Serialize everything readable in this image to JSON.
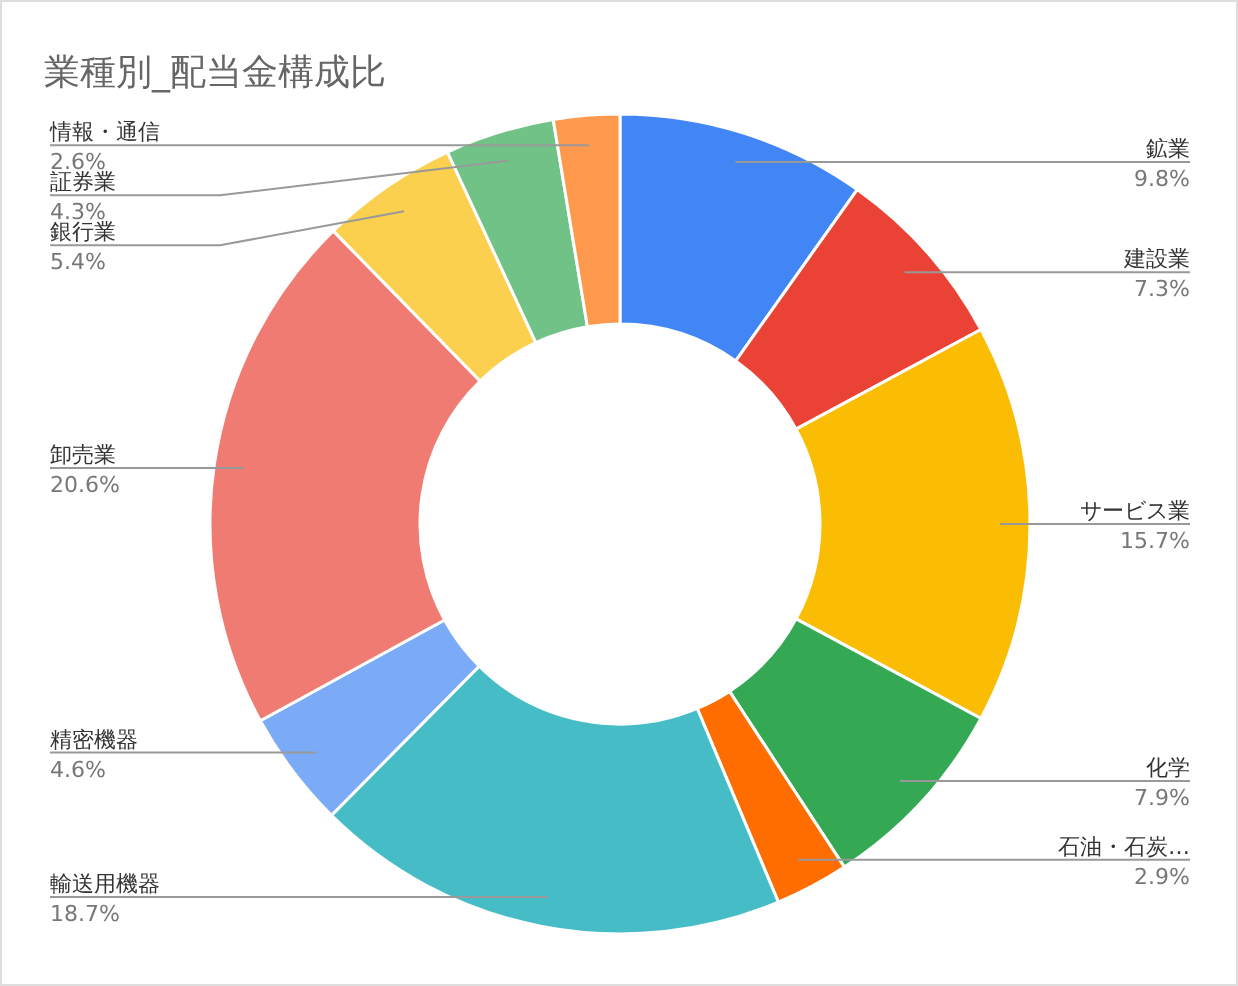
{
  "chart_data": {
    "type": "donut",
    "title": "業種別_配当金構成比",
    "categories": [
      "鉱業",
      "建設業",
      "サービス業",
      "化学",
      "石油・石炭…",
      "輸送用機器",
      "精密機器",
      "卸売業",
      "銀行業",
      "証券業",
      "情報・通信"
    ],
    "values": [
      9.8,
      7.3,
      15.7,
      7.9,
      2.9,
      18.7,
      4.6,
      20.6,
      5.4,
      4.3,
      2.6
    ],
    "colors": [
      "#4285f4",
      "#ea4335",
      "#fbbc04",
      "#34a853",
      "#ff6d01",
      "#46bdc6",
      "#7baaf7",
      "#f07b72",
      "#fcd04f",
      "#71c287",
      "#ff994d"
    ],
    "value_labels": [
      "9.8%",
      "7.3%",
      "15.7%",
      "7.9%",
      "2.9%",
      "18.7%",
      "4.6%",
      "20.6%",
      "5.4%",
      "4.3%",
      "2.6%"
    ]
  }
}
